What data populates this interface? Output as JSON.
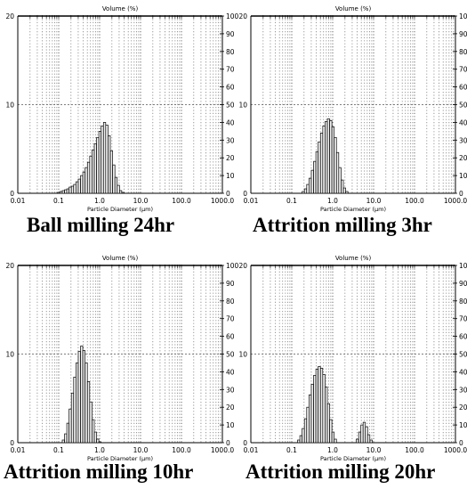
{
  "colors": {
    "ink": "#000000",
    "grid": "#555555",
    "paper": "#ffffff"
  },
  "chart_data": [
    {
      "type": "bar",
      "caption": "Ball milling 24hr",
      "title": "Volume (%)",
      "xlabel": "Particle Diameter (µm)",
      "x_scale": "log",
      "xlim": [
        0.01,
        1000
      ],
      "ylim": [
        0,
        20
      ],
      "y_ticks": [
        "0",
        "10",
        "20"
      ],
      "y2_ticks": [
        "0",
        "10",
        "20",
        "30",
        "40",
        "50",
        "60",
        "70",
        "80",
        "90",
        "100"
      ],
      "x_ticks": [
        "0.01",
        "0.1",
        "1.0",
        "10.0",
        "100.0",
        "1000.0"
      ],
      "grid": true,
      "x": [
        0.1,
        0.114,
        0.13,
        0.148,
        0.168,
        0.191,
        0.217,
        0.247,
        0.281,
        0.32,
        0.364,
        0.414,
        0.471,
        0.536,
        0.61,
        0.694,
        0.79,
        0.898,
        1.02,
        1.16,
        1.32,
        1.5,
        1.71,
        1.95,
        2.22,
        2.52,
        2.87,
        3.26,
        3.71
      ],
      "values": [
        0.1,
        0.2,
        0.3,
        0.4,
        0.5,
        0.7,
        0.8,
        1.0,
        1.3,
        1.6,
        2.0,
        2.4,
        2.9,
        3.5,
        4.2,
        4.9,
        5.6,
        6.3,
        7.0,
        7.6,
        8.0,
        7.7,
        6.5,
        4.8,
        3.2,
        1.8,
        0.9,
        0.3,
        0.1
      ]
    },
    {
      "type": "bar",
      "caption": "Attrition milling 3hr",
      "title": "Volume (%)",
      "xlabel": "Particle Diameter (µm)",
      "x_scale": "log",
      "xlim": [
        0.01,
        1000
      ],
      "ylim": [
        0,
        20
      ],
      "y_ticks": [
        "0",
        "10",
        "20"
      ],
      "y2_ticks": [
        "0",
        "10",
        "20",
        "30",
        "40",
        "50",
        "60",
        "70",
        "80",
        "90",
        "100"
      ],
      "x_ticks": [
        "0.01",
        "0.1",
        "1.0",
        "10.0",
        "100.0",
        "1000.0"
      ],
      "grid": true,
      "x": [
        0.191,
        0.217,
        0.247,
        0.281,
        0.32,
        0.364,
        0.414,
        0.471,
        0.536,
        0.61,
        0.694,
        0.79,
        0.898,
        1.02,
        1.16,
        1.32,
        1.5,
        1.71,
        1.95,
        2.22
      ],
      "values": [
        0.2,
        0.5,
        1.0,
        1.7,
        2.6,
        3.6,
        4.7,
        5.8,
        6.8,
        7.6,
        8.1,
        8.4,
        8.2,
        7.5,
        6.3,
        4.6,
        2.9,
        1.5,
        0.6,
        0.2
      ]
    },
    {
      "type": "bar",
      "caption": "Attrition milling 10hr",
      "title": "Volume (%)",
      "xlabel": "Particle Diameter (µm)",
      "x_scale": "log",
      "xlim": [
        0.01,
        1000
      ],
      "ylim": [
        0,
        20
      ],
      "y_ticks": [
        "0",
        "10",
        "20"
      ],
      "y2_ticks": [
        "0",
        "10",
        "20",
        "30",
        "40",
        "50",
        "60",
        "70",
        "80",
        "90",
        "100"
      ],
      "x_ticks": [
        "0.01",
        "0.1",
        "1.0",
        "10.0",
        "100.0",
        "1000.0"
      ],
      "grid": true,
      "x": [
        0.13,
        0.148,
        0.168,
        0.191,
        0.217,
        0.247,
        0.281,
        0.32,
        0.364,
        0.414,
        0.471,
        0.536,
        0.61,
        0.694,
        0.79,
        0.898,
        1.02
      ],
      "values": [
        0.3,
        1.0,
        2.2,
        3.8,
        5.6,
        7.4,
        9.0,
        10.3,
        10.9,
        10.4,
        9.0,
        6.9,
        4.6,
        2.6,
        1.2,
        0.4,
        0.1
      ]
    },
    {
      "type": "bar",
      "caption": "Attrition milling 20hr",
      "title": "Volume (%)",
      "xlabel": "Particle Diameter (µm)",
      "x_scale": "log",
      "xlim": [
        0.01,
        1000
      ],
      "ylim": [
        0,
        20
      ],
      "y_ticks": [
        "0",
        "10",
        "20"
      ],
      "y2_ticks": [
        "0",
        "10",
        "20",
        "30",
        "40",
        "50",
        "60",
        "70",
        "80",
        "90",
        "100"
      ],
      "x_ticks": [
        "0.01",
        "0.1",
        "1.0",
        "10.0",
        "100.0",
        "1000.0"
      ],
      "grid": true,
      "x": [
        0.148,
        0.168,
        0.191,
        0.217,
        0.247,
        0.281,
        0.32,
        0.364,
        0.414,
        0.471,
        0.536,
        0.61,
        0.694,
        0.79,
        0.898,
        1.02,
        1.16,
        4.0,
        4.6,
        5.2,
        5.9,
        6.7,
        7.6,
        8.7
      ],
      "values": [
        0.3,
        0.8,
        1.6,
        2.7,
        4.0,
        5.4,
        6.6,
        7.6,
        8.3,
        8.6,
        8.4,
        7.7,
        6.3,
        4.4,
        2.6,
        1.2,
        0.4,
        0.4,
        1.2,
        2.0,
        2.3,
        1.8,
        0.9,
        0.3
      ]
    }
  ]
}
